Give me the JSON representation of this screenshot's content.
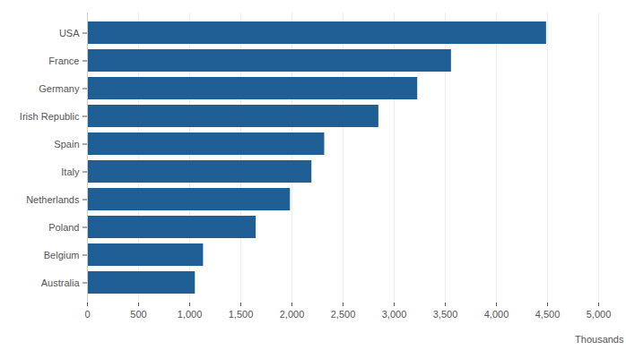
{
  "chart_data": {
    "type": "bar",
    "orientation": "horizontal",
    "categories": [
      "USA",
      "France",
      "Germany",
      "Irish Republic",
      "Spain",
      "Italy",
      "Netherlands",
      "Poland",
      "Belgium",
      "Australia"
    ],
    "values": [
      4490,
      3560,
      3230,
      2850,
      2320,
      2195,
      1985,
      1650,
      1135,
      1055
    ],
    "color": "#1f5f96",
    "x_label": "Thousands",
    "xlim": [
      0,
      5000
    ],
    "xticks": [
      0,
      500,
      {
        "value": 1000,
        "label": "1,000"
      },
      {
        "value": 1500,
        "label": "1,500"
      },
      {
        "value": 2000,
        "label": "2,000"
      },
      {
        "value": 2500,
        "label": "2,500"
      },
      {
        "value": 3000,
        "label": "3,000"
      },
      {
        "value": 3500,
        "label": "3,500"
      },
      {
        "value": 4000,
        "label": "4,000"
      },
      {
        "value": 4500,
        "label": "4,500"
      },
      {
        "value": 5000,
        "label": "5,000"
      }
    ],
    "grid": true
  }
}
